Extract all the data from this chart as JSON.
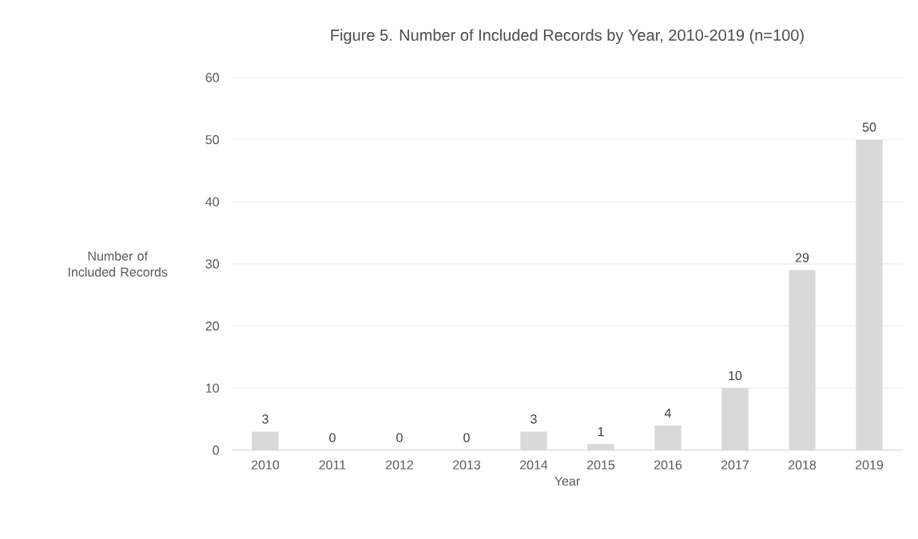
{
  "chart_data": {
    "type": "bar",
    "title": "Figure 5. Number of Included Records by Year, 2010-2019 (n=100)",
    "xlabel": "Year",
    "ylabel": "Number of Included Records",
    "categories": [
      "2010",
      "2011",
      "2012",
      "2013",
      "2014",
      "2015",
      "2016",
      "2017",
      "2018",
      "2019"
    ],
    "values": [
      3,
      0,
      0,
      0,
      3,
      1,
      4,
      10,
      29,
      50
    ],
    "color": "#d9d9d9",
    "ylim": [
      0,
      60
    ],
    "yticks": [
      0,
      10,
      20,
      30,
      40,
      50,
      60
    ],
    "grid": "y",
    "data_labels": true
  }
}
